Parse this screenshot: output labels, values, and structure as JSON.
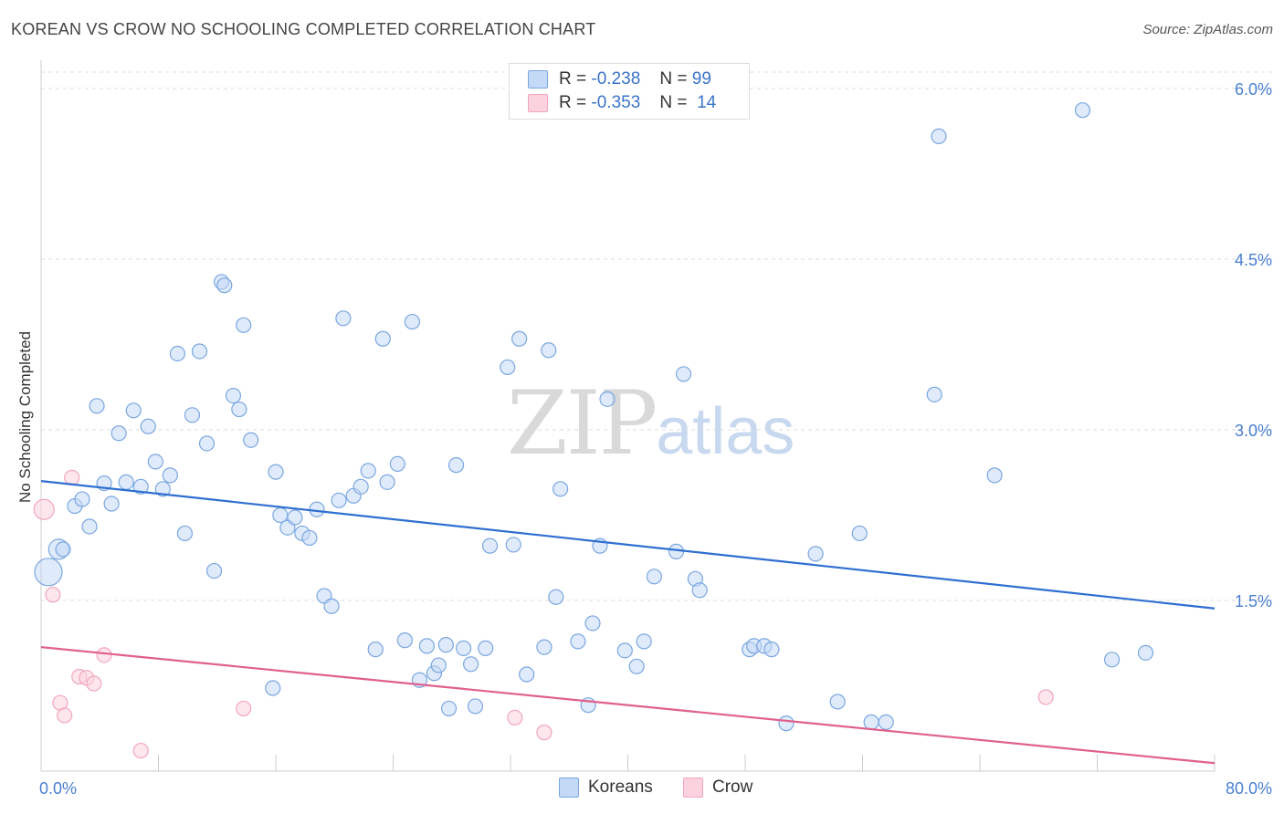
{
  "title": "KOREAN VS CROW NO SCHOOLING COMPLETED CORRELATION CHART",
  "source": "Source: ZipAtlas.com",
  "watermark": {
    "zip": "ZIP",
    "atlas": "atlas"
  },
  "legend": {
    "rows": [
      {
        "r_label": "R =",
        "r_value": "-0.238",
        "n_label": "N =",
        "n_value": "99"
      },
      {
        "r_label": "R =",
        "r_value": "-0.353",
        "n_label": "N =",
        "n_value": "14"
      }
    ]
  },
  "bottom_legend": {
    "series0": "Koreans",
    "series1": "Crow"
  },
  "chart_data": {
    "type": "scatter",
    "title": "KOREAN VS CROW NO SCHOOLING COMPLETED CORRELATION CHART",
    "xlabel": "",
    "ylabel": "No Schooling Completed",
    "xlim": [
      0,
      80
    ],
    "ylim": [
      0,
      6.2
    ],
    "x_tick_labels": [
      "0.0%",
      "80.0%"
    ],
    "y_ticks": [
      1.5,
      3.0,
      4.5,
      6.0
    ],
    "y_tick_labels": [
      "1.5%",
      "3.0%",
      "4.5%",
      "6.0%"
    ],
    "grid": "horizontal dashed",
    "legend_position": "top-center",
    "colors": {
      "Koreans": "#7aa7e0",
      "Crow": "#f2a5bd",
      "Koreans_line": "#2f6fd1",
      "Crow_line": "#e0608c"
    },
    "series": [
      {
        "name": "Koreans",
        "r": -0.238,
        "n": 99,
        "trend": {
          "x0": 0,
          "y0": 2.55,
          "x1": 80,
          "y1": 1.43
        },
        "points": [
          [
            0.5,
            1.75
          ],
          [
            1.2,
            1.95
          ],
          [
            1.5,
            1.95
          ],
          [
            2.3,
            2.33
          ],
          [
            2.8,
            2.39
          ],
          [
            3.3,
            2.15
          ],
          [
            3.8,
            3.21
          ],
          [
            4.3,
            2.53
          ],
          [
            4.8,
            2.35
          ],
          [
            5.3,
            2.97
          ],
          [
            5.8,
            2.54
          ],
          [
            6.3,
            3.17
          ],
          [
            6.8,
            2.5
          ],
          [
            7.3,
            3.03
          ],
          [
            7.8,
            2.72
          ],
          [
            8.3,
            2.48
          ],
          [
            8.8,
            2.6
          ],
          [
            9.3,
            3.67
          ],
          [
            9.8,
            2.09
          ],
          [
            10.3,
            3.13
          ],
          [
            10.8,
            3.69
          ],
          [
            11.3,
            2.88
          ],
          [
            11.8,
            1.76
          ],
          [
            12.3,
            4.3
          ],
          [
            12.5,
            4.27
          ],
          [
            13.1,
            3.3
          ],
          [
            13.5,
            3.18
          ],
          [
            13.8,
            3.92
          ],
          [
            14.3,
            2.91
          ],
          [
            15.8,
            0.73
          ],
          [
            16.0,
            2.63
          ],
          [
            16.3,
            2.25
          ],
          [
            16.8,
            2.14
          ],
          [
            17.3,
            2.23
          ],
          [
            17.8,
            2.09
          ],
          [
            18.3,
            2.05
          ],
          [
            18.8,
            2.3
          ],
          [
            19.3,
            1.54
          ],
          [
            19.8,
            1.45
          ],
          [
            20.3,
            2.38
          ],
          [
            20.6,
            3.98
          ],
          [
            21.3,
            2.42
          ],
          [
            21.8,
            2.5
          ],
          [
            22.3,
            2.64
          ],
          [
            22.8,
            1.07
          ],
          [
            23.3,
            3.8
          ],
          [
            23.6,
            2.54
          ],
          [
            24.3,
            2.7
          ],
          [
            24.8,
            1.15
          ],
          [
            25.3,
            3.95
          ],
          [
            25.8,
            0.8
          ],
          [
            26.3,
            1.1
          ],
          [
            26.8,
            0.86
          ],
          [
            27.1,
            0.93
          ],
          [
            27.6,
            1.11
          ],
          [
            27.8,
            0.55
          ],
          [
            28.3,
            2.69
          ],
          [
            28.8,
            1.08
          ],
          [
            29.3,
            0.94
          ],
          [
            29.6,
            0.57
          ],
          [
            30.3,
            1.08
          ],
          [
            30.6,
            1.98
          ],
          [
            31.8,
            3.55
          ],
          [
            32.2,
            1.99
          ],
          [
            32.6,
            3.8
          ],
          [
            33.1,
            0.85
          ],
          [
            34.3,
            1.09
          ],
          [
            34.6,
            3.7
          ],
          [
            35.1,
            1.53
          ],
          [
            35.4,
            2.48
          ],
          [
            36.6,
            1.14
          ],
          [
            37.6,
            1.3
          ],
          [
            37.3,
            0.58
          ],
          [
            38.1,
            1.98
          ],
          [
            38.6,
            3.27
          ],
          [
            39.8,
            1.06
          ],
          [
            40.6,
            0.92
          ],
          [
            41.1,
            1.14
          ],
          [
            41.8,
            1.71
          ],
          [
            43.3,
            1.93
          ],
          [
            43.8,
            3.49
          ],
          [
            44.6,
            1.69
          ],
          [
            44.9,
            1.59
          ],
          [
            48.3,
            1.07
          ],
          [
            48.6,
            1.1
          ],
          [
            49.3,
            1.1
          ],
          [
            49.8,
            1.07
          ],
          [
            50.8,
            0.42
          ],
          [
            52.8,
            1.91
          ],
          [
            54.3,
            0.61
          ],
          [
            55.8,
            2.09
          ],
          [
            56.6,
            0.43
          ],
          [
            57.6,
            0.43
          ],
          [
            60.9,
            3.31
          ],
          [
            61.2,
            5.58
          ],
          [
            65.0,
            2.6
          ],
          [
            71.0,
            5.81
          ],
          [
            73.0,
            0.98
          ],
          [
            75.3,
            1.04
          ]
        ]
      },
      {
        "name": "Crow",
        "r": -0.353,
        "n": 14,
        "trend": {
          "x0": 0,
          "y0": 1.09,
          "x1": 80,
          "y1": 0.07
        },
        "points": [
          [
            0.2,
            2.3
          ],
          [
            0.8,
            1.55
          ],
          [
            1.3,
            0.6
          ],
          [
            1.6,
            0.49
          ],
          [
            2.1,
            2.58
          ],
          [
            2.6,
            0.83
          ],
          [
            3.1,
            0.82
          ],
          [
            3.6,
            0.77
          ],
          [
            4.3,
            1.02
          ],
          [
            6.8,
            0.18
          ],
          [
            13.8,
            0.55
          ],
          [
            32.3,
            0.47
          ],
          [
            34.3,
            0.34
          ],
          [
            68.5,
            0.65
          ]
        ]
      }
    ]
  }
}
